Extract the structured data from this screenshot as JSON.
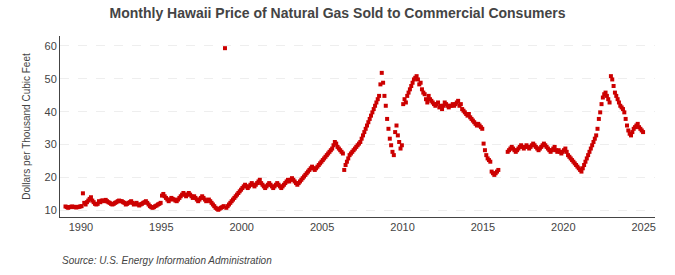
{
  "chart_data": {
    "type": "scatter",
    "title": "Monthly Hawaii Price of Natural Gas Sold to Commercial Consumers",
    "ylabel": "Dollars per Thousand Cubic Feet",
    "annotations": [
      "Source: U.S. Energy Information Administration"
    ],
    "color": "#cc0000",
    "marker": "square",
    "grid": true,
    "xlim": [
      1988.7,
      2025.7
    ],
    "ylim": [
      8,
      63
    ],
    "xticks": [
      1990,
      1995,
      2000,
      2005,
      2010,
      2015,
      2020,
      2025
    ],
    "yticks": [
      10,
      20,
      30,
      40,
      50,
      60
    ],
    "x": [
      1989.041667,
      1989.125,
      1989.208333,
      1989.291667,
      1989.375,
      1989.458333,
      1989.541667,
      1989.625,
      1989.708333,
      1989.791667,
      1989.875,
      1989.958333,
      1990.041667,
      1990.125,
      1990.208333,
      1990.291667,
      1990.375,
      1990.458333,
      1990.541667,
      1990.625,
      1990.708333,
      1990.791667,
      1990.875,
      1990.958333,
      1991.041667,
      1991.125,
      1991.208333,
      1991.291667,
      1991.375,
      1991.458333,
      1991.541667,
      1991.625,
      1991.708333,
      1991.791667,
      1991.875,
      1991.958333,
      1992.041667,
      1992.125,
      1992.208333,
      1992.291667,
      1992.375,
      1992.458333,
      1992.541667,
      1992.625,
      1992.708333,
      1992.791667,
      1992.875,
      1992.958333,
      1993.041667,
      1993.125,
      1993.208333,
      1993.291667,
      1993.375,
      1993.458333,
      1993.541667,
      1993.625,
      1993.708333,
      1993.791667,
      1993.875,
      1993.958333,
      1994.041667,
      1994.125,
      1994.208333,
      1994.291667,
      1994.375,
      1994.458333,
      1994.541667,
      1994.625,
      1994.708333,
      1994.791667,
      1994.875,
      1994.958333,
      1995.041667,
      1995.125,
      1995.208333,
      1995.291667,
      1995.375,
      1995.458333,
      1995.541667,
      1995.625,
      1995.708333,
      1995.791667,
      1995.875,
      1995.958333,
      1996.041667,
      1996.125,
      1996.208333,
      1996.291667,
      1996.375,
      1996.458333,
      1996.541667,
      1996.625,
      1996.708333,
      1996.791667,
      1996.875,
      1996.958333,
      1997.041667,
      1997.125,
      1997.208333,
      1997.291667,
      1997.375,
      1997.458333,
      1997.541667,
      1997.625,
      1997.708333,
      1997.791667,
      1997.875,
      1997.958333,
      1998.041667,
      1998.125,
      1998.208333,
      1998.291667,
      1998.375,
      1998.458333,
      1998.541667,
      1998.625,
      1998.708333,
      1998.791667,
      1998.875,
      1998.958333,
      1999.041667,
      1999.125,
      1999.208333,
      1999.291667,
      1999.375,
      1999.458333,
      1999.541667,
      1999.625,
      1999.708333,
      1999.791667,
      1999.875,
      1999.958333,
      2000.041667,
      2000.125,
      2000.208333,
      2000.291667,
      2000.375,
      2000.458333,
      2000.541667,
      2000.625,
      2000.708333,
      2000.791667,
      2000.875,
      2000.958333,
      2001.041667,
      2001.125,
      2001.208333,
      2001.291667,
      2001.375,
      2001.458333,
      2001.541667,
      2001.625,
      2001.708333,
      2001.791667,
      2001.875,
      2001.958333,
      2002.041667,
      2002.125,
      2002.208333,
      2002.291667,
      2002.375,
      2002.458333,
      2002.541667,
      2002.625,
      2002.708333,
      2002.791667,
      2002.875,
      2002.958333,
      2003.041667,
      2003.125,
      2003.208333,
      2003.291667,
      2003.375,
      2003.458333,
      2003.541667,
      2003.625,
      2003.708333,
      2003.791667,
      2003.875,
      2003.958333,
      2004.041667,
      2004.125,
      2004.208333,
      2004.291667,
      2004.375,
      2004.458333,
      2004.541667,
      2004.625,
      2004.708333,
      2004.791667,
      2004.875,
      2004.958333,
      2005.041667,
      2005.125,
      2005.208333,
      2005.291667,
      2005.375,
      2005.458333,
      2005.541667,
      2005.625,
      2005.708333,
      2005.791667,
      2005.875,
      2005.958333,
      2006.041667,
      2006.125,
      2006.208333,
      2006.291667,
      2006.375,
      2006.458333,
      2006.541667,
      2006.625,
      2006.708333,
      2006.791667,
      2006.875,
      2006.958333,
      2007.041667,
      2007.125,
      2007.208333,
      2007.291667,
      2007.375,
      2007.458333,
      2007.541667,
      2007.625,
      2007.708333,
      2007.791667,
      2007.875,
      2007.958333,
      2008.041667,
      2008.125,
      2008.208333,
      2008.291667,
      2008.375,
      2008.458333,
      2008.541667,
      2008.625,
      2008.708333,
      2008.791667,
      2008.875,
      2008.958333,
      2009.041667,
      2009.125,
      2009.208333,
      2009.291667,
      2009.375,
      2009.458333,
      2009.541667,
      2009.625,
      2009.708333,
      2009.791667,
      2009.875,
      2009.958333,
      2010.041667,
      2010.125,
      2010.208333,
      2010.291667,
      2010.375,
      2010.458333,
      2010.541667,
      2010.625,
      2010.708333,
      2010.791667,
      2010.875,
      2010.958333,
      2011.041667,
      2011.125,
      2011.208333,
      2011.291667,
      2011.375,
      2011.458333,
      2011.541667,
      2011.625,
      2011.708333,
      2011.791667,
      2011.875,
      2011.958333,
      2012.041667,
      2012.125,
      2012.208333,
      2012.291667,
      2012.375,
      2012.458333,
      2012.541667,
      2012.625,
      2012.708333,
      2012.791667,
      2012.875,
      2012.958333,
      2013.041667,
      2013.125,
      2013.208333,
      2013.291667,
      2013.375,
      2013.458333,
      2013.541667,
      2013.625,
      2013.708333,
      2013.791667,
      2013.875,
      2013.958333,
      2014.041667,
      2014.125,
      2014.208333,
      2014.291667,
      2014.375,
      2014.458333,
      2014.541667,
      2014.625,
      2014.708333,
      2014.791667,
      2014.875,
      2014.958333,
      2015.041667,
      2015.125,
      2015.208333,
      2015.291667,
      2015.375,
      2015.458333,
      2015.541667,
      2015.625,
      2015.708333,
      2015.791667,
      2015.875,
      2015.958333,
      2016.541667,
      2016.625,
      2016.708333,
      2016.791667,
      2016.875,
      2016.958333,
      2017.041667,
      2017.125,
      2017.208333,
      2017.291667,
      2017.375,
      2017.458333,
      2017.541667,
      2017.625,
      2017.708333,
      2017.791667,
      2017.875,
      2017.958333,
      2018.041667,
      2018.125,
      2018.208333,
      2018.291667,
      2018.375,
      2018.458333,
      2018.541667,
      2018.625,
      2018.708333,
      2018.791667,
      2018.875,
      2018.958333,
      2019.041667,
      2019.125,
      2019.208333,
      2019.291667,
      2019.375,
      2019.458333,
      2019.541667,
      2019.625,
      2019.708333,
      2019.791667,
      2019.875,
      2019.958333,
      2020.041667,
      2020.125,
      2020.208333,
      2020.291667,
      2020.375,
      2020.458333,
      2020.541667,
      2020.625,
      2020.708333,
      2020.791667,
      2020.875,
      2020.958333,
      2021.041667,
      2021.125,
      2021.208333,
      2021.291667,
      2021.375,
      2021.458333,
      2021.541667,
      2021.625,
      2021.708333,
      2021.791667,
      2021.875,
      2021.958333,
      2022.041667,
      2022.125,
      2022.208333,
      2022.291667,
      2022.375,
      2022.458333,
      2022.541667,
      2022.625,
      2022.708333,
      2022.791667,
      2022.875,
      2022.958333,
      2023.041667,
      2023.125,
      2023.208333,
      2023.291667,
      2023.375,
      2023.458333,
      2023.541667,
      2023.625,
      2023.708333,
      2023.791667,
      2023.875,
      2023.958333,
      2024.041667,
      2024.125,
      2024.208333,
      2024.291667,
      2024.375,
      2024.458333,
      2024.541667,
      2024.625,
      2024.708333,
      2024.791667,
      2024.875,
      2024.958333
    ],
    "values": [
      11.2,
      11.0,
      10.8,
      11.0,
      11.1,
      11.2,
      11.0,
      11.1,
      10.9,
      11.0,
      11.1,
      11.2,
      11.3,
      15.2,
      12.3,
      11.8,
      12.5,
      13.0,
      13.5,
      14.0,
      13.0,
      12.5,
      12.0,
      11.8,
      12.0,
      12.8,
      12.5,
      13.0,
      13.0,
      12.8,
      13.2,
      12.8,
      12.5,
      12.3,
      12.0,
      11.8,
      12.0,
      12.3,
      12.5,
      12.8,
      13.0,
      12.8,
      12.8,
      12.5,
      12.3,
      11.8,
      12.0,
      12.3,
      12.5,
      12.8,
      12.3,
      11.8,
      12.0,
      12.3,
      11.8,
      11.5,
      11.8,
      12.0,
      12.3,
      12.5,
      12.8,
      12.3,
      11.8,
      11.3,
      11.0,
      10.8,
      11.0,
      11.3,
      11.5,
      11.8,
      12.0,
      12.3,
      14.5,
      15.0,
      14.3,
      13.8,
      13.3,
      12.8,
      13.3,
      13.8,
      13.5,
      13.3,
      13.0,
      12.8,
      13.3,
      13.8,
      14.3,
      14.8,
      15.3,
      14.8,
      14.3,
      14.8,
      15.3,
      14.8,
      14.3,
      13.8,
      14.3,
      13.8,
      13.3,
      12.8,
      13.3,
      13.8,
      14.3,
      13.8,
      13.3,
      12.8,
      13.0,
      13.3,
      12.8,
      12.3,
      11.8,
      11.3,
      10.8,
      10.5,
      10.2,
      10.5,
      10.8,
      11.0,
      11.3,
      59.3,
      10.8,
      11.3,
      11.8,
      12.3,
      12.8,
      13.3,
      13.8,
      14.3,
      14.8,
      15.3,
      15.8,
      16.3,
      16.8,
      17.3,
      17.8,
      17.3,
      16.8,
      17.3,
      17.8,
      18.3,
      17.8,
      17.3,
      17.8,
      18.3,
      18.8,
      19.3,
      18.3,
      17.8,
      17.3,
      16.8,
      17.3,
      17.8,
      18.3,
      17.8,
      17.3,
      16.8,
      17.3,
      17.8,
      18.3,
      17.8,
      17.3,
      16.8,
      17.3,
      17.8,
      18.3,
      18.8,
      19.3,
      18.8,
      19.3,
      19.8,
      19.3,
      18.8,
      18.3,
      17.8,
      18.3,
      18.8,
      19.3,
      19.8,
      20.3,
      20.8,
      21.3,
      21.8,
      22.3,
      22.8,
      23.3,
      22.8,
      22.3,
      22.8,
      23.3,
      23.8,
      24.3,
      24.8,
      25.3,
      25.8,
      26.3,
      26.8,
      27.3,
      27.8,
      28.3,
      28.8,
      29.8,
      30.8,
      30.3,
      29.3,
      28.8,
      28.3,
      27.8,
      27.3,
      22.3,
      23.8,
      24.8,
      25.8,
      26.8,
      27.3,
      27.8,
      28.3,
      28.8,
      29.3,
      29.8,
      30.3,
      30.8,
      31.8,
      32.8,
      33.8,
      34.8,
      35.8,
      36.8,
      37.8,
      38.8,
      39.8,
      40.8,
      41.8,
      42.8,
      43.8,
      44.8,
      48.3,
      51.8,
      48.8,
      44.8,
      41.8,
      37.8,
      34.8,
      31.8,
      29.8,
      27.8,
      26.8,
      33.8,
      35.8,
      32.8,
      30.8,
      28.8,
      29.8,
      42.3,
      43.8,
      42.8,
      44.8,
      45.8,
      46.8,
      47.8,
      48.8,
      49.8,
      50.3,
      50.8,
      49.8,
      48.3,
      48.8,
      46.8,
      45.8,
      45.3,
      43.8,
      42.8,
      44.8,
      43.8,
      43.3,
      42.8,
      42.3,
      41.8,
      42.3,
      42.8,
      41.3,
      41.8,
      40.8,
      41.8,
      42.8,
      42.3,
      41.8,
      41.3,
      41.8,
      41.8,
      42.3,
      41.8,
      42.3,
      42.8,
      43.3,
      41.8,
      42.3,
      40.8,
      40.3,
      39.8,
      39.3,
      38.8,
      39.3,
      38.3,
      37.8,
      37.3,
      36.8,
      36.3,
      35.8,
      36.3,
      35.8,
      35.3,
      34.8,
      30.3,
      28.3,
      26.8,
      25.8,
      25.3,
      24.8,
      21.8,
      21.3,
      20.8,
      21.3,
      21.8,
      22.3,
      27.8,
      28.3,
      28.8,
      29.3,
      28.8,
      28.3,
      27.8,
      28.3,
      28.8,
      29.3,
      29.8,
      29.3,
      28.8,
      29.3,
      29.8,
      29.3,
      28.8,
      29.3,
      29.8,
      30.3,
      29.8,
      29.3,
      28.8,
      28.3,
      28.8,
      29.3,
      29.8,
      30.3,
      29.8,
      29.3,
      28.8,
      28.3,
      27.8,
      28.3,
      28.8,
      29.3,
      28.3,
      27.8,
      28.3,
      27.8,
      27.3,
      27.8,
      28.3,
      28.8,
      27.8,
      26.8,
      26.3,
      25.8,
      25.3,
      24.8,
      24.3,
      23.8,
      23.3,
      22.8,
      22.3,
      21.8,
      22.8,
      23.8,
      24.8,
      25.8,
      26.8,
      27.8,
      28.8,
      29.8,
      30.8,
      31.8,
      32.8,
      34.8,
      37.8,
      39.8,
      42.3,
      44.3,
      45.3,
      45.8,
      44.8,
      43.8,
      42.8,
      50.8,
      49.8,
      47.8,
      45.8,
      44.8,
      43.8,
      42.8,
      41.8,
      41.3,
      40.8,
      39.8,
      37.8,
      35.8,
      34.3,
      33.3,
      32.8,
      33.8,
      34.8,
      35.3,
      35.8,
      36.3,
      35.3,
      34.8,
      34.3,
      33.8
    ]
  }
}
